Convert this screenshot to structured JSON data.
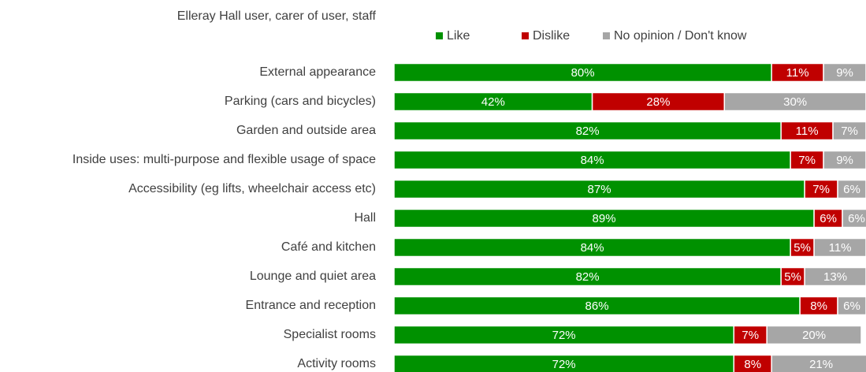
{
  "chart_data": {
    "type": "stacked-bar-horizontal",
    "title": "Elleray Hall user, carer of user, staff",
    "categories": [
      "External appearance",
      "Parking (cars and bicycles)",
      "Garden and outside area",
      "Inside uses: multi-purpose and flexible usage of space",
      "Accessibility (eg lifts, wheelchair access etc)",
      "Hall",
      "Café and kitchen",
      "Lounge and quiet area",
      "Entrance and reception",
      "Specialist rooms",
      "Activity rooms"
    ],
    "series": [
      {
        "name": "Like",
        "color": "#009100",
        "values": [
          80,
          42,
          82,
          84,
          87,
          89,
          84,
          82,
          86,
          72,
          72
        ],
        "value_labels": [
          "80%",
          "42%",
          "82%",
          "84%",
          "87%",
          "89%",
          "84%",
          "82%",
          "86%",
          "72%",
          "72%"
        ]
      },
      {
        "name": "Dislike",
        "color": "#c00000",
        "values": [
          11,
          28,
          11,
          7,
          7,
          6,
          5,
          5,
          8,
          7,
          8
        ],
        "value_labels": [
          "11%",
          "28%",
          "11%",
          "7%",
          "7%",
          "6%",
          "5%",
          "5%",
          "8%",
          "7%",
          "8%"
        ]
      },
      {
        "name": "No opinion / Don't know",
        "color": "#a6a6a6",
        "values": [
          9,
          30,
          7,
          9,
          6,
          6,
          11,
          13,
          6,
          20,
          21
        ],
        "value_labels": [
          "9%",
          "30%",
          "7%",
          "9%",
          "6%",
          "6%",
          "11%",
          "13%",
          "6%",
          "20%",
          "21%"
        ]
      }
    ],
    "xlim": [
      0,
      100
    ]
  }
}
